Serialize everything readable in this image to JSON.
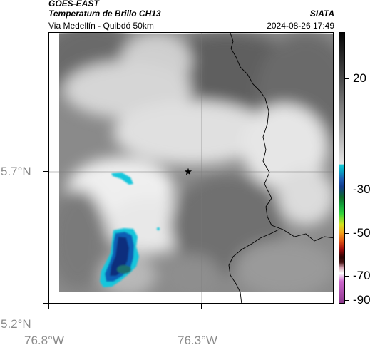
{
  "header": {
    "satellite": "GOES-EAST",
    "product": "Temperatura de Brillo CH13",
    "location": "Via Medellín - Quibdó 50km",
    "organization": "SIATA",
    "datetime": "2024-08-26 17:49"
  },
  "axes": {
    "latitude_labels": [
      "5.7°N",
      "5.2°N"
    ],
    "longitude_labels": [
      "76.8°W",
      "76.3°W"
    ]
  },
  "colorbar": {
    "labels": [
      "20",
      "-30",
      "-50",
      "-70",
      "-90"
    ]
  },
  "map": {
    "marker": "star-icon",
    "colors": {
      "gray_dark": "#5a5a5a",
      "gray_mid": "#8c8c8c",
      "gray_light": "#c8c8c8",
      "cloud_white": "#f2f2f2",
      "cyan": "#13c6dc",
      "blue": "#0e5fb5",
      "navy": "#0a2f7d",
      "teal": "#1f6e6e",
      "border_line": "#000000",
      "grid_line": "#7a7a7a"
    }
  }
}
